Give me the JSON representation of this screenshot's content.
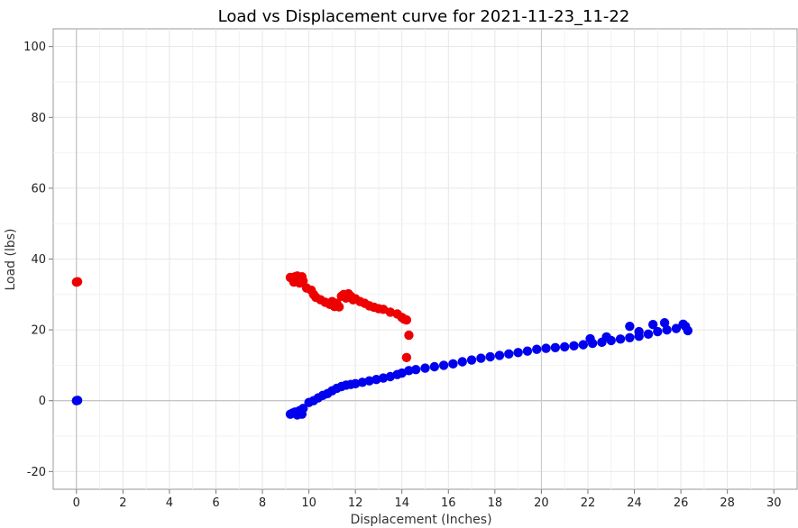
{
  "chart_data": {
    "type": "scatter",
    "title": "Load vs Displacement curve for 2021-11-23_11-22",
    "xlabel": "Displacement (Inches)",
    "ylabel": "Load (lbs)",
    "xlim": [
      -1,
      31
    ],
    "ylim": [
      -25,
      105
    ],
    "xticks": [
      0,
      2,
      4,
      6,
      8,
      10,
      12,
      14,
      16,
      18,
      20,
      22,
      24,
      26,
      28,
      30
    ],
    "yticks": [
      -20,
      0,
      20,
      40,
      60,
      80,
      100
    ],
    "grid": true,
    "legend": "none",
    "series": [
      {
        "color": "#ee0000",
        "points": [
          [
            0,
            33.5
          ],
          [
            0.05,
            33.6
          ],
          [
            9.2,
            34.8
          ],
          [
            9.3,
            34.5
          ],
          [
            9.35,
            33.5
          ],
          [
            9.4,
            35.0
          ],
          [
            9.45,
            34.2
          ],
          [
            9.5,
            35.2
          ],
          [
            9.55,
            34.0
          ],
          [
            9.6,
            33.2
          ],
          [
            9.65,
            34.8
          ],
          [
            9.7,
            35.0
          ],
          [
            9.75,
            33.8
          ],
          [
            9.9,
            31.8
          ],
          [
            10.1,
            31.2
          ],
          [
            10.2,
            30.0
          ],
          [
            10.3,
            29.2
          ],
          [
            10.5,
            28.5
          ],
          [
            10.7,
            27.8
          ],
          [
            10.9,
            27.2
          ],
          [
            11.0,
            28.0
          ],
          [
            11.1,
            26.6
          ],
          [
            11.2,
            27.5
          ],
          [
            11.3,
            26.5
          ],
          [
            11.4,
            29.5
          ],
          [
            11.5,
            30.0
          ],
          [
            11.6,
            29.0
          ],
          [
            11.7,
            30.2
          ],
          [
            11.8,
            29.5
          ],
          [
            11.9,
            28.5
          ],
          [
            12.0,
            28.8
          ],
          [
            12.2,
            28.0
          ],
          [
            12.4,
            27.5
          ],
          [
            12.6,
            26.8
          ],
          [
            12.8,
            26.4
          ],
          [
            13.0,
            26.0
          ],
          [
            13.2,
            25.8
          ],
          [
            13.5,
            25.0
          ],
          [
            13.8,
            24.5
          ],
          [
            14.0,
            23.5
          ],
          [
            14.1,
            23.0
          ],
          [
            14.2,
            22.8
          ],
          [
            14.3,
            18.5
          ],
          [
            14.2,
            12.2
          ]
        ]
      },
      {
        "color": "#0000ee",
        "points": [
          [
            0,
            0
          ],
          [
            0.05,
            0.1
          ],
          [
            9.2,
            -3.8
          ],
          [
            9.3,
            -3.5
          ],
          [
            9.4,
            -3.2
          ],
          [
            9.5,
            -4.0
          ],
          [
            9.6,
            -2.8
          ],
          [
            9.7,
            -3.8
          ],
          [
            9.75,
            -2.2
          ],
          [
            10.0,
            -0.5
          ],
          [
            10.2,
            0.0
          ],
          [
            10.4,
            0.8
          ],
          [
            10.6,
            1.5
          ],
          [
            10.8,
            2.0
          ],
          [
            11.0,
            2.8
          ],
          [
            11.2,
            3.5
          ],
          [
            11.4,
            4.0
          ],
          [
            11.6,
            4.4
          ],
          [
            11.8,
            4.6
          ],
          [
            12.0,
            4.8
          ],
          [
            12.3,
            5.2
          ],
          [
            12.6,
            5.6
          ],
          [
            12.9,
            6.0
          ],
          [
            13.2,
            6.4
          ],
          [
            13.5,
            6.8
          ],
          [
            13.8,
            7.4
          ],
          [
            14.0,
            7.8
          ],
          [
            14.3,
            8.5
          ],
          [
            14.6,
            8.8
          ],
          [
            15.0,
            9.2
          ],
          [
            15.4,
            9.6
          ],
          [
            15.8,
            10.0
          ],
          [
            16.2,
            10.4
          ],
          [
            16.6,
            11.0
          ],
          [
            17.0,
            11.5
          ],
          [
            17.4,
            12.0
          ],
          [
            17.8,
            12.4
          ],
          [
            18.2,
            12.8
          ],
          [
            18.6,
            13.2
          ],
          [
            19.0,
            13.6
          ],
          [
            19.4,
            14.0
          ],
          [
            19.8,
            14.5
          ],
          [
            20.2,
            14.8
          ],
          [
            20.6,
            15.0
          ],
          [
            21.0,
            15.2
          ],
          [
            21.4,
            15.5
          ],
          [
            21.8,
            15.8
          ],
          [
            22.2,
            16.2
          ],
          [
            22.6,
            16.5
          ],
          [
            23.0,
            17.0
          ],
          [
            23.4,
            17.4
          ],
          [
            23.8,
            17.8
          ],
          [
            24.2,
            18.2
          ],
          [
            24.6,
            18.8
          ],
          [
            25.0,
            19.5
          ],
          [
            25.4,
            20.0
          ],
          [
            25.8,
            20.4
          ],
          [
            26.2,
            21.0
          ],
          [
            26.3,
            19.8
          ],
          [
            23.8,
            21.0
          ],
          [
            24.8,
            21.5
          ],
          [
            25.3,
            22.0
          ],
          [
            26.1,
            21.6
          ],
          [
            22.1,
            17.5
          ],
          [
            22.8,
            18.0
          ],
          [
            24.2,
            19.5
          ]
        ]
      }
    ]
  }
}
